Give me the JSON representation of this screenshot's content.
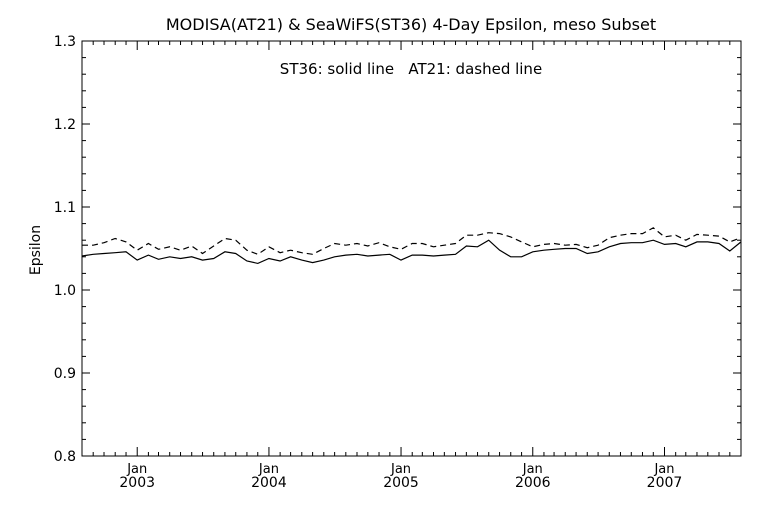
{
  "chart_data": {
    "type": "line",
    "title": "MODISA(AT21) & SeaWiFS(ST36) 4-Day Epsilon, meso Subset",
    "annotation": "ST36: solid line   AT21: dashed line",
    "ylabel": "Epsilon",
    "xlabel": "",
    "ylim": [
      0.8,
      1.3
    ],
    "yticks": [
      "0.8",
      "0.9",
      "1.0",
      "1.1",
      "1.2",
      "1.3"
    ],
    "xlim": [
      "2002-08-01",
      "2007-08-01"
    ],
    "xticks": [
      {
        "month": "Jan",
        "year": "2003",
        "date": "2003-01-01"
      },
      {
        "month": "Jan",
        "year": "2004",
        "date": "2004-01-01"
      },
      {
        "month": "Jan",
        "year": "2005",
        "date": "2005-01-01"
      },
      {
        "month": "Jan",
        "year": "2006",
        "date": "2006-01-01"
      },
      {
        "month": "Jan",
        "year": "2007",
        "date": "2007-01-01"
      }
    ],
    "grid": false,
    "series": [
      {
        "name": "ST36",
        "style": "solid",
        "color": "#000000",
        "x": [
          "2002-08-01",
          "2002-09-01",
          "2002-10-01",
          "2002-11-01",
          "2002-12-01",
          "2003-01-01",
          "2003-02-01",
          "2003-03-01",
          "2003-04-01",
          "2003-05-01",
          "2003-06-01",
          "2003-07-01",
          "2003-08-01",
          "2003-09-01",
          "2003-10-01",
          "2003-11-01",
          "2003-12-01",
          "2004-01-01",
          "2004-02-01",
          "2004-03-01",
          "2004-04-01",
          "2004-05-01",
          "2004-06-01",
          "2004-07-01",
          "2004-08-01",
          "2004-09-01",
          "2004-10-01",
          "2004-11-01",
          "2004-12-01",
          "2005-01-01",
          "2005-02-01",
          "2005-03-01",
          "2005-04-01",
          "2005-05-01",
          "2005-06-01",
          "2005-07-01",
          "2005-08-01",
          "2005-09-01",
          "2005-10-01",
          "2005-11-01",
          "2005-12-01",
          "2006-01-01",
          "2006-02-01",
          "2006-03-01",
          "2006-04-01",
          "2006-05-01",
          "2006-06-01",
          "2006-07-01",
          "2006-08-01",
          "2006-09-01",
          "2006-10-01",
          "2006-11-01",
          "2006-12-01",
          "2007-01-01",
          "2007-02-01",
          "2007-03-01",
          "2007-04-01",
          "2007-05-01",
          "2007-06-01",
          "2007-07-01",
          "2007-08-01"
        ],
        "y": [
          1.041,
          1.043,
          1.044,
          1.045,
          1.046,
          1.036,
          1.042,
          1.037,
          1.04,
          1.038,
          1.04,
          1.036,
          1.038,
          1.046,
          1.044,
          1.035,
          1.032,
          1.038,
          1.035,
          1.04,
          1.036,
          1.033,
          1.036,
          1.04,
          1.042,
          1.043,
          1.041,
          1.042,
          1.043,
          1.036,
          1.042,
          1.042,
          1.041,
          1.042,
          1.043,
          1.053,
          1.052,
          1.06,
          1.048,
          1.04,
          1.04,
          1.046,
          1.048,
          1.049,
          1.05,
          1.05,
          1.044,
          1.046,
          1.052,
          1.056,
          1.057,
          1.057,
          1.06,
          1.055,
          1.056,
          1.052,
          1.058,
          1.058,
          1.056,
          1.047,
          1.058
        ]
      },
      {
        "name": "AT21",
        "style": "dashed",
        "color": "#000000",
        "x": [
          "2002-08-01",
          "2002-09-01",
          "2002-10-01",
          "2002-11-01",
          "2002-12-01",
          "2003-01-01",
          "2003-02-01",
          "2003-03-01",
          "2003-04-01",
          "2003-05-01",
          "2003-06-01",
          "2003-07-01",
          "2003-08-01",
          "2003-09-01",
          "2003-10-01",
          "2003-11-01",
          "2003-12-01",
          "2004-01-01",
          "2004-02-01",
          "2004-03-01",
          "2004-04-01",
          "2004-05-01",
          "2004-06-01",
          "2004-07-01",
          "2004-08-01",
          "2004-09-01",
          "2004-10-01",
          "2004-11-01",
          "2004-12-01",
          "2005-01-01",
          "2005-02-01",
          "2005-03-01",
          "2005-04-01",
          "2005-05-01",
          "2005-06-01",
          "2005-07-01",
          "2005-08-01",
          "2005-09-01",
          "2005-10-01",
          "2005-11-01",
          "2005-12-01",
          "2006-01-01",
          "2006-02-01",
          "2006-03-01",
          "2006-04-01",
          "2006-05-01",
          "2006-06-01",
          "2006-07-01",
          "2006-08-01",
          "2006-09-01",
          "2006-10-01",
          "2006-11-01",
          "2006-12-01",
          "2007-01-01",
          "2007-02-01",
          "2007-03-01",
          "2007-04-01",
          "2007-05-01",
          "2007-06-01",
          "2007-07-01",
          "2007-08-01"
        ],
        "y": [
          1.054,
          1.054,
          1.057,
          1.062,
          1.058,
          1.048,
          1.056,
          1.049,
          1.052,
          1.048,
          1.053,
          1.044,
          1.053,
          1.062,
          1.06,
          1.048,
          1.043,
          1.052,
          1.045,
          1.048,
          1.045,
          1.043,
          1.05,
          1.056,
          1.054,
          1.056,
          1.053,
          1.057,
          1.052,
          1.049,
          1.056,
          1.056,
          1.052,
          1.054,
          1.056,
          1.066,
          1.066,
          1.069,
          1.068,
          1.064,
          1.058,
          1.052,
          1.055,
          1.056,
          1.054,
          1.055,
          1.051,
          1.054,
          1.063,
          1.066,
          1.068,
          1.068,
          1.075,
          1.064,
          1.066,
          1.06,
          1.067,
          1.066,
          1.065,
          1.058,
          1.063
        ]
      }
    ]
  }
}
